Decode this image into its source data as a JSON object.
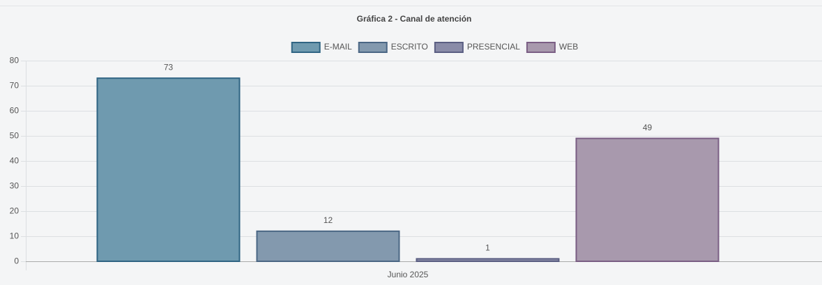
{
  "chart_data": {
    "type": "bar",
    "title": "Gráfica 2 - Canal de atención",
    "categories": [
      "Junio 2025"
    ],
    "series": [
      {
        "name": "E-MAIL",
        "color": "#6f9aaf",
        "border": "#2f6483",
        "values": [
          73
        ]
      },
      {
        "name": "ESCRITO",
        "color": "#8399ae",
        "border": "#4a6684",
        "values": [
          12
        ]
      },
      {
        "name": "PRESENCIAL",
        "color": "#8a8ca8",
        "border": "#5a5e82",
        "values": [
          1
        ]
      },
      {
        "name": "WEB",
        "color": "#a899ad",
        "border": "#7a5e84",
        "values": [
          49
        ]
      }
    ],
    "ylim": [
      0,
      80
    ],
    "yticks": [
      0,
      10,
      20,
      30,
      40,
      50,
      60,
      70,
      80
    ],
    "grid": true,
    "legend": "top"
  }
}
